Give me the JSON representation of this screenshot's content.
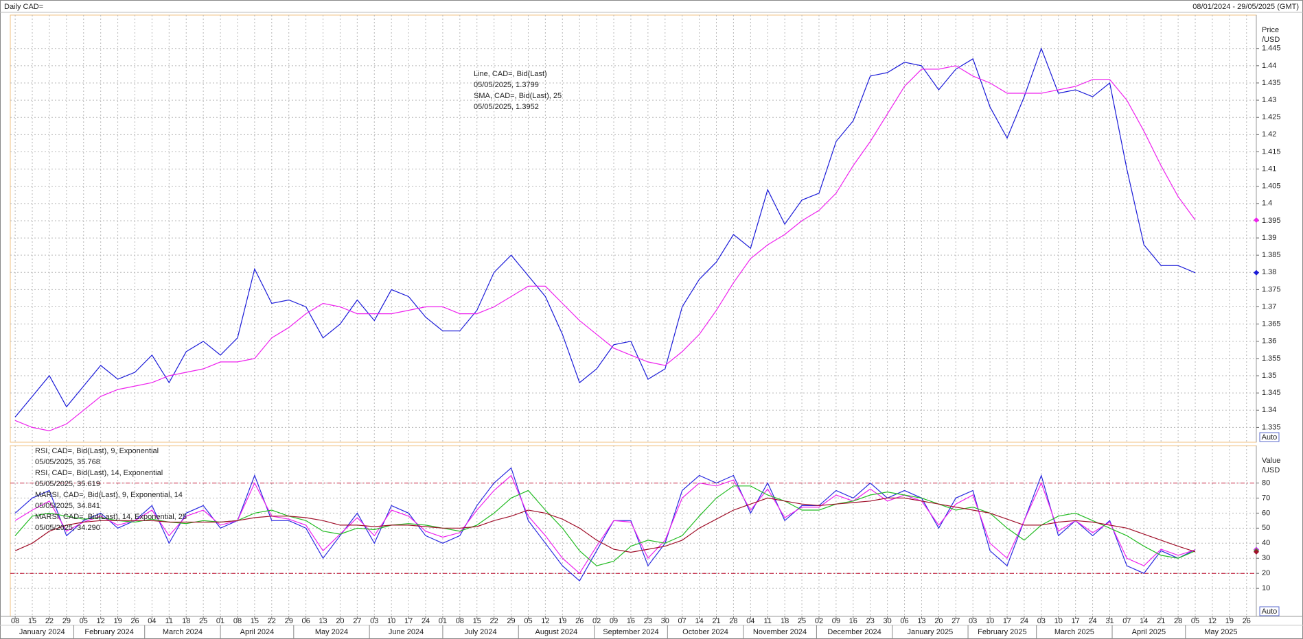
{
  "header": {
    "title": "Daily CAD=",
    "range": "08/01/2024 - 29/05/2025 (GMT)"
  },
  "chart_data": [
    {
      "type": "line",
      "y_label": [
        "Price",
        "/USD"
      ],
      "auto_label": "Auto",
      "x": [
        "2024-01-08",
        "2024-01-15",
        "2024-01-22",
        "2024-01-29",
        "2024-02-05",
        "2024-02-12",
        "2024-02-19",
        "2024-02-26",
        "2024-03-04",
        "2024-03-11",
        "2024-03-18",
        "2024-03-25",
        "2024-04-01",
        "2024-04-08",
        "2024-04-15",
        "2024-04-22",
        "2024-04-29",
        "2024-05-06",
        "2024-05-13",
        "2024-05-20",
        "2024-05-27",
        "2024-06-03",
        "2024-06-10",
        "2024-06-17",
        "2024-06-24",
        "2024-07-01",
        "2024-07-08",
        "2024-07-15",
        "2024-07-22",
        "2024-07-29",
        "2024-08-05",
        "2024-08-12",
        "2024-08-19",
        "2024-08-26",
        "2024-09-02",
        "2024-09-09",
        "2024-09-16",
        "2024-09-23",
        "2024-09-30",
        "2024-10-07",
        "2024-10-14",
        "2024-10-21",
        "2024-10-28",
        "2024-11-04",
        "2024-11-11",
        "2024-11-18",
        "2024-11-25",
        "2024-12-02",
        "2024-12-09",
        "2024-12-16",
        "2024-12-23",
        "2024-12-30",
        "2025-01-06",
        "2025-01-13",
        "2025-01-20",
        "2025-01-27",
        "2025-02-03",
        "2025-02-10",
        "2025-02-17",
        "2025-02-24",
        "2025-03-03",
        "2025-03-10",
        "2025-03-17",
        "2025-03-24",
        "2025-03-31",
        "2025-04-07",
        "2025-04-14",
        "2025-04-21",
        "2025-04-28",
        "2025-05-05"
      ],
      "xlim": [
        "2024-01-06",
        "2025-05-30"
      ],
      "ylim": [
        1.3307,
        1.4547
      ],
      "yticks": [
        1.335,
        1.34,
        1.345,
        1.35,
        1.355,
        1.36,
        1.365,
        1.37,
        1.375,
        1.38,
        1.385,
        1.39,
        1.395,
        1.4,
        1.405,
        1.41,
        1.415,
        1.42,
        1.425,
        1.43,
        1.435,
        1.44,
        1.445
      ],
      "grid": true,
      "series": [
        {
          "name": "Line, CAD=, Bid(Last)",
          "legend_value": "05/05/2025, 1.3799",
          "color": "#1a1ad8",
          "values": [
            1.338,
            1.344,
            1.35,
            1.341,
            1.347,
            1.353,
            1.349,
            1.351,
            1.356,
            1.348,
            1.357,
            1.36,
            1.356,
            1.361,
            1.381,
            1.371,
            1.372,
            1.37,
            1.361,
            1.365,
            1.372,
            1.366,
            1.375,
            1.373,
            1.367,
            1.363,
            1.363,
            1.369,
            1.38,
            1.385,
            1.379,
            1.373,
            1.362,
            1.348,
            1.352,
            1.359,
            1.36,
            1.349,
            1.352,
            1.37,
            1.378,
            1.383,
            1.391,
            1.387,
            1.404,
            1.394,
            1.401,
            1.403,
            1.418,
            1.424,
            1.437,
            1.438,
            1.441,
            1.44,
            1.433,
            1.439,
            1.442,
            1.428,
            1.419,
            1.431,
            1.445,
            1.432,
            1.433,
            1.431,
            1.435,
            1.41,
            1.388,
            1.382,
            1.382,
            1.3799
          ]
        },
        {
          "name": "SMA, CAD=, Bid(Last),  25",
          "legend_value": "05/05/2025, 1.3952",
          "color": "#ee22ee",
          "values": [
            1.337,
            1.335,
            1.334,
            1.336,
            1.34,
            1.344,
            1.346,
            1.347,
            1.348,
            1.35,
            1.351,
            1.352,
            1.354,
            1.354,
            1.355,
            1.361,
            1.364,
            1.368,
            1.371,
            1.37,
            1.368,
            1.368,
            1.368,
            1.369,
            1.37,
            1.37,
            1.368,
            1.368,
            1.37,
            1.373,
            1.376,
            1.376,
            1.371,
            1.366,
            1.362,
            1.358,
            1.356,
            1.354,
            1.353,
            1.357,
            1.362,
            1.369,
            1.377,
            1.384,
            1.388,
            1.391,
            1.395,
            1.398,
            1.403,
            1.411,
            1.418,
            1.426,
            1.434,
            1.439,
            1.439,
            1.44,
            1.437,
            1.435,
            1.432,
            1.432,
            1.432,
            1.433,
            1.434,
            1.436,
            1.436,
            1.43,
            1.421,
            1.411,
            1.402,
            1.3952
          ]
        }
      ]
    },
    {
      "type": "line",
      "y_label": [
        "Value",
        "/USD"
      ],
      "auto_label": "Auto",
      "x": [
        "2024-01-08",
        "2024-01-15",
        "2024-01-22",
        "2024-01-29",
        "2024-02-05",
        "2024-02-12",
        "2024-02-19",
        "2024-02-26",
        "2024-03-04",
        "2024-03-11",
        "2024-03-18",
        "2024-03-25",
        "2024-04-01",
        "2024-04-08",
        "2024-04-15",
        "2024-04-22",
        "2024-04-29",
        "2024-05-06",
        "2024-05-13",
        "2024-05-20",
        "2024-05-27",
        "2024-06-03",
        "2024-06-10",
        "2024-06-17",
        "2024-06-24",
        "2024-07-01",
        "2024-07-08",
        "2024-07-15",
        "2024-07-22",
        "2024-07-29",
        "2024-08-05",
        "2024-08-12",
        "2024-08-19",
        "2024-08-26",
        "2024-09-02",
        "2024-09-09",
        "2024-09-16",
        "2024-09-23",
        "2024-09-30",
        "2024-10-07",
        "2024-10-14",
        "2024-10-21",
        "2024-10-28",
        "2024-11-04",
        "2024-11-11",
        "2024-11-18",
        "2024-11-25",
        "2024-12-02",
        "2024-12-09",
        "2024-12-16",
        "2024-12-23",
        "2024-12-30",
        "2025-01-06",
        "2025-01-13",
        "2025-01-20",
        "2025-01-27",
        "2025-02-03",
        "2025-02-10",
        "2025-02-17",
        "2025-02-24",
        "2025-03-03",
        "2025-03-10",
        "2025-03-17",
        "2025-03-24",
        "2025-03-31",
        "2025-04-07",
        "2025-04-14",
        "2025-04-21",
        "2025-04-28",
        "2025-05-05"
      ],
      "xlim": [
        "2024-01-06",
        "2025-05-30"
      ],
      "ylim": [
        -8.6,
        104.8
      ],
      "yticks": [
        10,
        20,
        30,
        40,
        50,
        60,
        70,
        80
      ],
      "levels": [
        80,
        20
      ],
      "grid": true,
      "xticks": [
        {
          "value": "2024-01-08",
          "label": "08"
        },
        {
          "value": "2024-01-15",
          "label": "15"
        },
        {
          "value": "2024-01-22",
          "label": "22"
        },
        {
          "value": "2024-01-29",
          "label": "29"
        },
        {
          "value": "2024-02-05",
          "label": "05"
        },
        {
          "value": "2024-02-12",
          "label": "12"
        },
        {
          "value": "2024-02-19",
          "label": "19"
        },
        {
          "value": "2024-02-26",
          "label": "26"
        },
        {
          "value": "2024-03-04",
          "label": "04"
        },
        {
          "value": "2024-03-11",
          "label": "11"
        },
        {
          "value": "2024-03-18",
          "label": "18"
        },
        {
          "value": "2024-03-25",
          "label": "25"
        },
        {
          "value": "2024-04-01",
          "label": "01"
        },
        {
          "value": "2024-04-08",
          "label": "08"
        },
        {
          "value": "2024-04-15",
          "label": "15"
        },
        {
          "value": "2024-04-22",
          "label": "22"
        },
        {
          "value": "2024-04-29",
          "label": "29"
        },
        {
          "value": "2024-05-06",
          "label": "06"
        },
        {
          "value": "2024-05-13",
          "label": "13"
        },
        {
          "value": "2024-05-20",
          "label": "20"
        },
        {
          "value": "2024-05-27",
          "label": "27"
        },
        {
          "value": "2024-06-03",
          "label": "03"
        },
        {
          "value": "2024-06-10",
          "label": "10"
        },
        {
          "value": "2024-06-17",
          "label": "17"
        },
        {
          "value": "2024-06-24",
          "label": "24"
        },
        {
          "value": "2024-07-01",
          "label": "01"
        },
        {
          "value": "2024-07-08",
          "label": "08"
        },
        {
          "value": "2024-07-15",
          "label": "15"
        },
        {
          "value": "2024-07-22",
          "label": "22"
        },
        {
          "value": "2024-07-29",
          "label": "29"
        },
        {
          "value": "2024-08-05",
          "label": "05"
        },
        {
          "value": "2024-08-12",
          "label": "12"
        },
        {
          "value": "2024-08-19",
          "label": "19"
        },
        {
          "value": "2024-08-26",
          "label": "26"
        },
        {
          "value": "2024-09-02",
          "label": "02"
        },
        {
          "value": "2024-09-09",
          "label": "09"
        },
        {
          "value": "2024-09-16",
          "label": "16"
        },
        {
          "value": "2024-09-23",
          "label": "23"
        },
        {
          "value": "2024-09-30",
          "label": "30"
        },
        {
          "value": "2024-10-07",
          "label": "07"
        },
        {
          "value": "2024-10-14",
          "label": "14"
        },
        {
          "value": "2024-10-21",
          "label": "21"
        },
        {
          "value": "2024-10-28",
          "label": "28"
        },
        {
          "value": "2024-11-04",
          "label": "04"
        },
        {
          "value": "2024-11-11",
          "label": "11"
        },
        {
          "value": "2024-11-18",
          "label": "18"
        },
        {
          "value": "2024-11-25",
          "label": "25"
        },
        {
          "value": "2024-12-02",
          "label": "02"
        },
        {
          "value": "2024-12-09",
          "label": "09"
        },
        {
          "value": "2024-12-16",
          "label": "16"
        },
        {
          "value": "2024-12-23",
          "label": "23"
        },
        {
          "value": "2024-12-30",
          "label": "30"
        },
        {
          "value": "2025-01-06",
          "label": "06"
        },
        {
          "value": "2025-01-13",
          "label": "13"
        },
        {
          "value": "2025-01-20",
          "label": "20"
        },
        {
          "value": "2025-01-27",
          "label": "27"
        },
        {
          "value": "2025-02-03",
          "label": "03"
        },
        {
          "value": "2025-02-10",
          "label": "10"
        },
        {
          "value": "2025-02-17",
          "label": "17"
        },
        {
          "value": "2025-02-24",
          "label": "24"
        },
        {
          "value": "2025-03-03",
          "label": "03"
        },
        {
          "value": "2025-03-10",
          "label": "10"
        },
        {
          "value": "2025-03-17",
          "label": "17"
        },
        {
          "value": "2025-03-24",
          "label": "24"
        },
        {
          "value": "2025-03-31",
          "label": "31"
        },
        {
          "value": "2025-04-07",
          "label": "07"
        },
        {
          "value": "2025-04-14",
          "label": "14"
        },
        {
          "value": "2025-04-21",
          "label": "21"
        },
        {
          "value": "2025-04-28",
          "label": "28"
        },
        {
          "value": "2025-05-05",
          "label": "05"
        },
        {
          "value": "2025-05-12",
          "label": "12"
        },
        {
          "value": "2025-05-19",
          "label": "19"
        },
        {
          "value": "2025-05-26",
          "label": "26"
        }
      ],
      "months": [
        {
          "value": "2024-01",
          "label": "January 2024"
        },
        {
          "value": "2024-02",
          "label": "February 2024"
        },
        {
          "value": "2024-03",
          "label": "March 2024"
        },
        {
          "value": "2024-04",
          "label": "April 2024"
        },
        {
          "value": "2024-05",
          "label": "May 2024"
        },
        {
          "value": "2024-06",
          "label": "June 2024"
        },
        {
          "value": "2024-07",
          "label": "July 2024"
        },
        {
          "value": "2024-08",
          "label": "August 2024"
        },
        {
          "value": "2024-09",
          "label": "September 2024"
        },
        {
          "value": "2024-10",
          "label": "October 2024"
        },
        {
          "value": "2024-11",
          "label": "November 2024"
        },
        {
          "value": "2024-12",
          "label": "December 2024"
        },
        {
          "value": "2025-01",
          "label": "January 2025"
        },
        {
          "value": "2025-02",
          "label": "February 2025"
        },
        {
          "value": "2025-03",
          "label": "March 2025"
        },
        {
          "value": "2025-04",
          "label": "April 2025"
        },
        {
          "value": "2025-05",
          "label": "May 2025"
        }
      ],
      "series": [
        {
          "name": "RSI, CAD=, Bid(Last),  9, Exponential",
          "legend_value": "05/05/2025, 35.768",
          "color": "#2a2ae0",
          "values": [
            60,
            70,
            75,
            45,
            55,
            60,
            50,
            55,
            65,
            40,
            60,
            65,
            50,
            55,
            85,
            55,
            55,
            50,
            30,
            45,
            60,
            40,
            65,
            60,
            45,
            40,
            45,
            65,
            80,
            90,
            55,
            40,
            25,
            15,
            35,
            55,
            55,
            25,
            40,
            75,
            85,
            80,
            85,
            60,
            80,
            55,
            65,
            65,
            75,
            70,
            80,
            70,
            75,
            70,
            50,
            70,
            75,
            35,
            25,
            55,
            85,
            45,
            55,
            45,
            55,
            25,
            20,
            35,
            30,
            35.768
          ]
        },
        {
          "name": "RSI, CAD=, Bid(Last),  14, Exponential",
          "legend_value": "05/05/2025, 35.619",
          "color": "#ee22ee",
          "values": [
            55,
            62,
            68,
            48,
            54,
            58,
            52,
            55,
            62,
            45,
            58,
            62,
            52,
            55,
            80,
            58,
            56,
            52,
            35,
            46,
            57,
            45,
            62,
            58,
            48,
            44,
            47,
            62,
            75,
            85,
            58,
            45,
            30,
            20,
            38,
            55,
            54,
            30,
            42,
            70,
            80,
            78,
            82,
            62,
            76,
            57,
            64,
            64,
            72,
            68,
            76,
            68,
            72,
            68,
            52,
            66,
            72,
            40,
            30,
            55,
            80,
            48,
            55,
            47,
            54,
            30,
            25,
            36,
            32,
            35.619
          ]
        },
        {
          "name": "MARSI, CAD=, Bid(Last),  9, Exponential, 14",
          "legend_value": "05/05/2025, 34.841",
          "color": "#22bb22",
          "values": [
            45,
            58,
            60,
            58,
            56,
            57,
            55,
            54,
            56,
            54,
            53,
            55,
            54,
            55,
            60,
            62,
            58,
            55,
            48,
            46,
            50,
            49,
            52,
            53,
            52,
            50,
            48,
            52,
            60,
            70,
            75,
            62,
            50,
            35,
            25,
            28,
            38,
            42,
            40,
            45,
            58,
            70,
            78,
            78,
            72,
            68,
            62,
            62,
            66,
            68,
            72,
            74,
            72,
            70,
            66,
            62,
            64,
            60,
            50,
            42,
            52,
            58,
            60,
            55,
            50,
            45,
            38,
            32,
            30,
            34.841
          ]
        },
        {
          "name": "MARSI, CAD=, Bid(Last),  14, Exponential, 25",
          "legend_value": "05/05/2025, 34.290",
          "color": "#a0102a",
          "values": [
            35,
            40,
            48,
            52,
            54,
            55,
            55,
            55,
            55,
            54,
            54,
            54,
            54,
            55,
            57,
            58,
            58,
            57,
            55,
            52,
            52,
            51,
            52,
            52,
            51,
            50,
            50,
            51,
            55,
            58,
            62,
            60,
            56,
            50,
            42,
            36,
            34,
            36,
            38,
            42,
            50,
            56,
            62,
            66,
            70,
            68,
            66,
            65,
            66,
            67,
            68,
            70,
            70,
            68,
            66,
            64,
            62,
            60,
            56,
            52,
            52,
            54,
            55,
            54,
            52,
            50,
            46,
            42,
            38,
            34.29
          ]
        }
      ]
    }
  ]
}
